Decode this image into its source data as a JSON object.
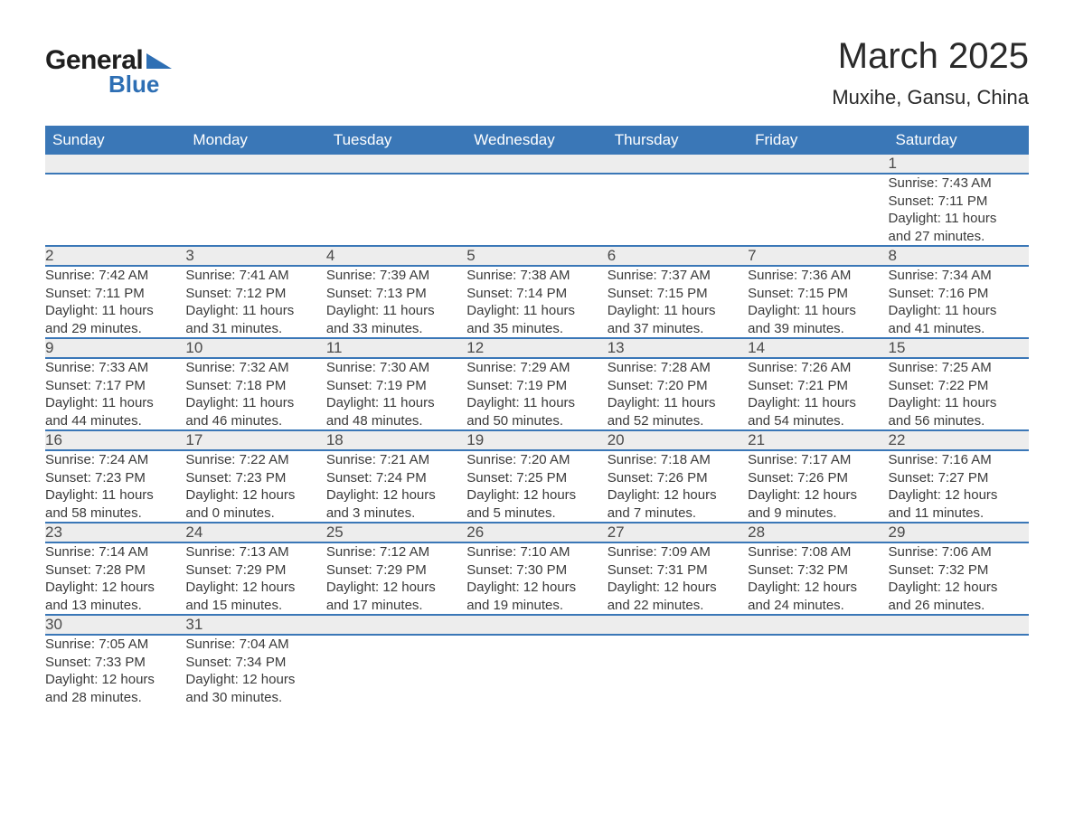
{
  "brand": {
    "general": "General",
    "blue": "Blue",
    "triangle_color": "#2e6fb4"
  },
  "title": "March 2025",
  "location": "Muxihe, Gansu, China",
  "colors": {
    "header_bg": "#3a77b7",
    "header_text": "#ffffff",
    "daynum_bg": "#ededed",
    "row_divider": "#3a77b7",
    "body_text": "#3a3a3a"
  },
  "weekdays": [
    "Sunday",
    "Monday",
    "Tuesday",
    "Wednesday",
    "Thursday",
    "Friday",
    "Saturday"
  ],
  "weeks": [
    [
      null,
      null,
      null,
      null,
      null,
      null,
      {
        "n": "1",
        "sr": "Sunrise: 7:43 AM",
        "ss": "Sunset: 7:11 PM",
        "d1": "Daylight: 11 hours",
        "d2": "and 27 minutes."
      }
    ],
    [
      {
        "n": "2",
        "sr": "Sunrise: 7:42 AM",
        "ss": "Sunset: 7:11 PM",
        "d1": "Daylight: 11 hours",
        "d2": "and 29 minutes."
      },
      {
        "n": "3",
        "sr": "Sunrise: 7:41 AM",
        "ss": "Sunset: 7:12 PM",
        "d1": "Daylight: 11 hours",
        "d2": "and 31 minutes."
      },
      {
        "n": "4",
        "sr": "Sunrise: 7:39 AM",
        "ss": "Sunset: 7:13 PM",
        "d1": "Daylight: 11 hours",
        "d2": "and 33 minutes."
      },
      {
        "n": "5",
        "sr": "Sunrise: 7:38 AM",
        "ss": "Sunset: 7:14 PM",
        "d1": "Daylight: 11 hours",
        "d2": "and 35 minutes."
      },
      {
        "n": "6",
        "sr": "Sunrise: 7:37 AM",
        "ss": "Sunset: 7:15 PM",
        "d1": "Daylight: 11 hours",
        "d2": "and 37 minutes."
      },
      {
        "n": "7",
        "sr": "Sunrise: 7:36 AM",
        "ss": "Sunset: 7:15 PM",
        "d1": "Daylight: 11 hours",
        "d2": "and 39 minutes."
      },
      {
        "n": "8",
        "sr": "Sunrise: 7:34 AM",
        "ss": "Sunset: 7:16 PM",
        "d1": "Daylight: 11 hours",
        "d2": "and 41 minutes."
      }
    ],
    [
      {
        "n": "9",
        "sr": "Sunrise: 7:33 AM",
        "ss": "Sunset: 7:17 PM",
        "d1": "Daylight: 11 hours",
        "d2": "and 44 minutes."
      },
      {
        "n": "10",
        "sr": "Sunrise: 7:32 AM",
        "ss": "Sunset: 7:18 PM",
        "d1": "Daylight: 11 hours",
        "d2": "and 46 minutes."
      },
      {
        "n": "11",
        "sr": "Sunrise: 7:30 AM",
        "ss": "Sunset: 7:19 PM",
        "d1": "Daylight: 11 hours",
        "d2": "and 48 minutes."
      },
      {
        "n": "12",
        "sr": "Sunrise: 7:29 AM",
        "ss": "Sunset: 7:19 PM",
        "d1": "Daylight: 11 hours",
        "d2": "and 50 minutes."
      },
      {
        "n": "13",
        "sr": "Sunrise: 7:28 AM",
        "ss": "Sunset: 7:20 PM",
        "d1": "Daylight: 11 hours",
        "d2": "and 52 minutes."
      },
      {
        "n": "14",
        "sr": "Sunrise: 7:26 AM",
        "ss": "Sunset: 7:21 PM",
        "d1": "Daylight: 11 hours",
        "d2": "and 54 minutes."
      },
      {
        "n": "15",
        "sr": "Sunrise: 7:25 AM",
        "ss": "Sunset: 7:22 PM",
        "d1": "Daylight: 11 hours",
        "d2": "and 56 minutes."
      }
    ],
    [
      {
        "n": "16",
        "sr": "Sunrise: 7:24 AM",
        "ss": "Sunset: 7:23 PM",
        "d1": "Daylight: 11 hours",
        "d2": "and 58 minutes."
      },
      {
        "n": "17",
        "sr": "Sunrise: 7:22 AM",
        "ss": "Sunset: 7:23 PM",
        "d1": "Daylight: 12 hours",
        "d2": "and 0 minutes."
      },
      {
        "n": "18",
        "sr": "Sunrise: 7:21 AM",
        "ss": "Sunset: 7:24 PM",
        "d1": "Daylight: 12 hours",
        "d2": "and 3 minutes."
      },
      {
        "n": "19",
        "sr": "Sunrise: 7:20 AM",
        "ss": "Sunset: 7:25 PM",
        "d1": "Daylight: 12 hours",
        "d2": "and 5 minutes."
      },
      {
        "n": "20",
        "sr": "Sunrise: 7:18 AM",
        "ss": "Sunset: 7:26 PM",
        "d1": "Daylight: 12 hours",
        "d2": "and 7 minutes."
      },
      {
        "n": "21",
        "sr": "Sunrise: 7:17 AM",
        "ss": "Sunset: 7:26 PM",
        "d1": "Daylight: 12 hours",
        "d2": "and 9 minutes."
      },
      {
        "n": "22",
        "sr": "Sunrise: 7:16 AM",
        "ss": "Sunset: 7:27 PM",
        "d1": "Daylight: 12 hours",
        "d2": "and 11 minutes."
      }
    ],
    [
      {
        "n": "23",
        "sr": "Sunrise: 7:14 AM",
        "ss": "Sunset: 7:28 PM",
        "d1": "Daylight: 12 hours",
        "d2": "and 13 minutes."
      },
      {
        "n": "24",
        "sr": "Sunrise: 7:13 AM",
        "ss": "Sunset: 7:29 PM",
        "d1": "Daylight: 12 hours",
        "d2": "and 15 minutes."
      },
      {
        "n": "25",
        "sr": "Sunrise: 7:12 AM",
        "ss": "Sunset: 7:29 PM",
        "d1": "Daylight: 12 hours",
        "d2": "and 17 minutes."
      },
      {
        "n": "26",
        "sr": "Sunrise: 7:10 AM",
        "ss": "Sunset: 7:30 PM",
        "d1": "Daylight: 12 hours",
        "d2": "and 19 minutes."
      },
      {
        "n": "27",
        "sr": "Sunrise: 7:09 AM",
        "ss": "Sunset: 7:31 PM",
        "d1": "Daylight: 12 hours",
        "d2": "and 22 minutes."
      },
      {
        "n": "28",
        "sr": "Sunrise: 7:08 AM",
        "ss": "Sunset: 7:32 PM",
        "d1": "Daylight: 12 hours",
        "d2": "and 24 minutes."
      },
      {
        "n": "29",
        "sr": "Sunrise: 7:06 AM",
        "ss": "Sunset: 7:32 PM",
        "d1": "Daylight: 12 hours",
        "d2": "and 26 minutes."
      }
    ],
    [
      {
        "n": "30",
        "sr": "Sunrise: 7:05 AM",
        "ss": "Sunset: 7:33 PM",
        "d1": "Daylight: 12 hours",
        "d2": "and 28 minutes."
      },
      {
        "n": "31",
        "sr": "Sunrise: 7:04 AM",
        "ss": "Sunset: 7:34 PM",
        "d1": "Daylight: 12 hours",
        "d2": "and 30 minutes."
      },
      null,
      null,
      null,
      null,
      null
    ]
  ]
}
